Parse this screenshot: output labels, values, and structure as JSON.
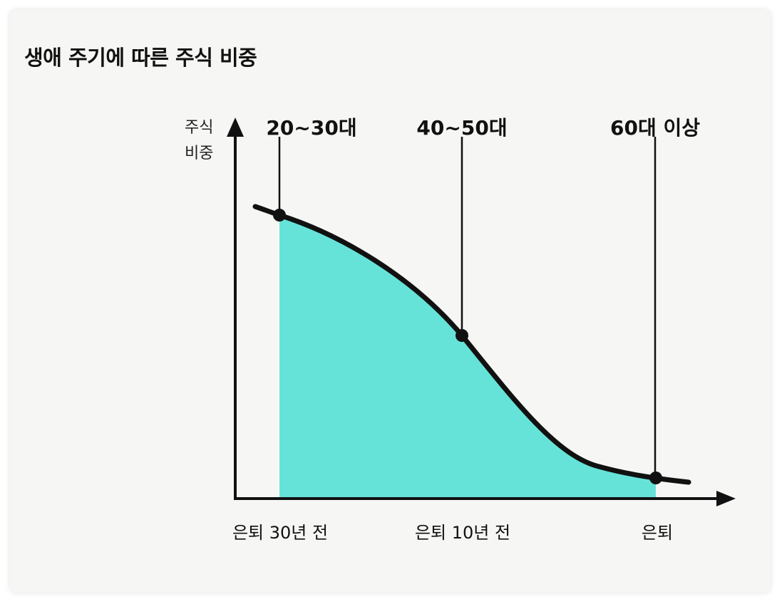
{
  "title": "생애 주기에 따른 주식 비중",
  "y_axis_label": [
    "주식",
    "비중"
  ],
  "stages": [
    "20~30대",
    "40~50대",
    "60대 이상"
  ],
  "x_ticks": [
    "은퇴 30년 전",
    "은퇴 10년 전",
    "은퇴"
  ],
  "colors": {
    "fill": "#66e3d8",
    "curve": "#111111",
    "axis": "#111111"
  }
}
